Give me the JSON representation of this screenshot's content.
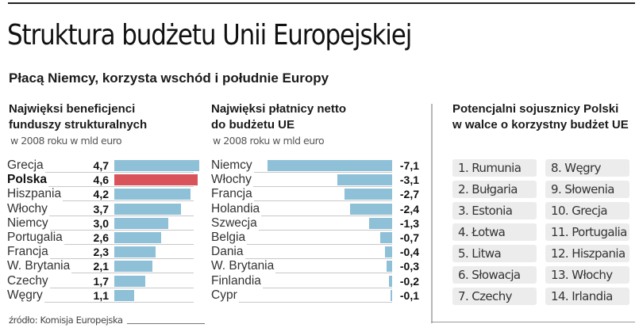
{
  "header": {
    "title": "Struktura budżetu Unii Europejskiej",
    "subtitle": "Płacą Niemcy, korzysta wschód i południe Europy"
  },
  "colors": {
    "bar": "#8ec0d8",
    "highlight_bar": "#d9545a",
    "ally_box": "#ececec"
  },
  "chart_data": [
    {
      "type": "bar",
      "orientation": "horizontal",
      "title": "Najwięksi beneficjenci funduszy strukturalnych",
      "title_lines": [
        "Najwięksi beneficjenci",
        "funduszy strukturalnych"
      ],
      "subtitle": "w 2008 roku w mld euro",
      "categories": [
        "Grecja",
        "Polska",
        "Hiszpania",
        "Włochy",
        "Niemcy",
        "Portugalia",
        "Francja",
        "W. Brytania",
        "Czechy",
        "Węgry"
      ],
      "values": [
        4.7,
        4.6,
        4.2,
        3.7,
        3.0,
        2.6,
        2.3,
        2.1,
        1.7,
        1.1
      ],
      "value_labels": [
        "4,7",
        "4,6",
        "4,2",
        "3,7",
        "3,0",
        "2,6",
        "2,3",
        "2,1",
        "1,7",
        "1,1"
      ],
      "highlight": "Polska",
      "xlim": [
        0,
        4.7
      ],
      "grid": false,
      "legend": "none"
    },
    {
      "type": "bar",
      "orientation": "horizontal",
      "title": "Najwięksi płatnicy netto do budżetu UE",
      "title_lines": [
        "Najwięksi płatnicy netto",
        "do budżetu UE"
      ],
      "subtitle": "w 2008 roku w mld euro",
      "categories": [
        "Niemcy",
        "Włochy",
        "Francja",
        "Holandia",
        "Szwecja",
        "Belgia",
        "Dania",
        "W. Brytania",
        "Finlandia",
        "Cypr"
      ],
      "values": [
        -7.1,
        -3.1,
        -2.7,
        -2.4,
        -1.3,
        -0.7,
        -0.4,
        -0.3,
        -0.2,
        -0.1
      ],
      "value_labels": [
        "-7,1",
        "-3,1",
        "-2,7",
        "-2,4",
        "-1,3",
        "-0,7",
        "-0,4",
        "-0,3",
        "-0,2",
        "-0,1"
      ],
      "xlim": [
        -7.1,
        0
      ],
      "grid": false,
      "legend": "none"
    }
  ],
  "allies": {
    "title_lines": [
      "Potencjalni sojusznicy Polski",
      "w walce o korzystny budżet UE"
    ],
    "items": [
      "1. Rumunia",
      "2. Bułgaria",
      "3. Estonia",
      "4. Łotwa",
      "5. Litwa",
      "6. Słowacja",
      "7. Czechy",
      "8. Węgry",
      "9. Słowenia",
      "10. Grecja",
      "11. Portugalia",
      "12. Hiszpania",
      "13. Włochy",
      "14. Irlandia"
    ]
  },
  "source": "źródło: Komisja Europejska"
}
